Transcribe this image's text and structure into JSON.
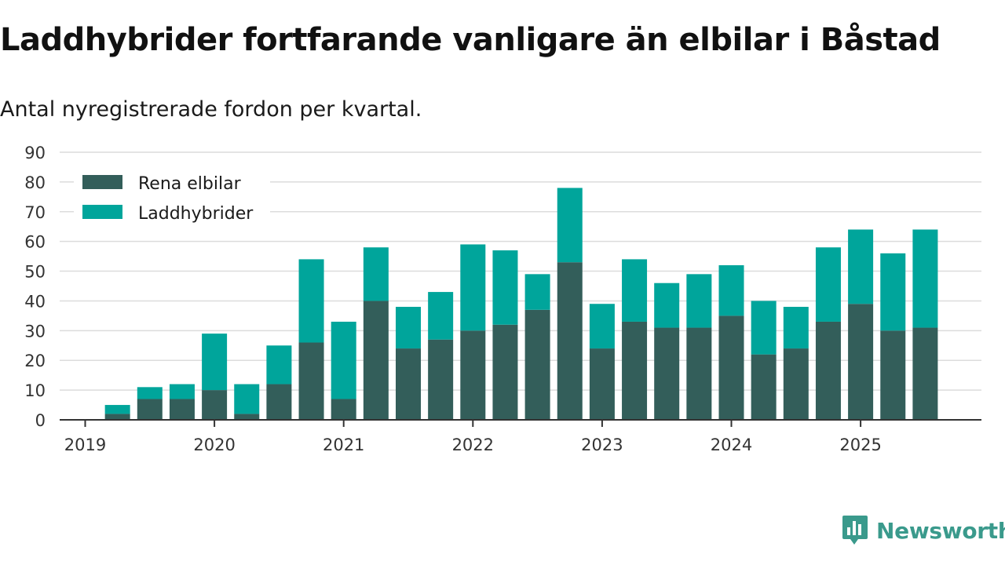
{
  "header": {
    "title": "Laddhybrider fortfarande vanligare än elbilar i Båstad",
    "subtitle": "Antal nyregistrerade fordon per kvartal."
  },
  "brand": {
    "name": "Newsworthy",
    "icon": "newsworthy-logo-icon",
    "color": "#3a9a8c"
  },
  "chart_data": {
    "type": "bar",
    "stacked": true,
    "title": "Laddhybrider fortfarande vanligare än elbilar i Båstad",
    "subtitle": "Antal nyregistrerade fordon per kvartal.",
    "xlabel": "",
    "ylabel": "",
    "ylim": [
      0,
      90
    ],
    "yticks": [
      0,
      10,
      20,
      30,
      40,
      50,
      60,
      70,
      80,
      90
    ],
    "grid": true,
    "legend_position": "top-left",
    "categories": [
      "2019 Q1",
      "2019 Q2",
      "2019 Q3",
      "2019 Q4",
      "2020 Q1",
      "2020 Q2",
      "2020 Q3",
      "2020 Q4",
      "2021 Q1",
      "2021 Q2",
      "2021 Q3",
      "2021 Q4",
      "2022 Q1",
      "2022 Q2",
      "2022 Q3",
      "2022 Q4",
      "2023 Q1",
      "2023 Q2",
      "2023 Q3",
      "2023 Q4",
      "2024 Q1",
      "2024 Q2",
      "2024 Q3",
      "2024 Q4",
      "2025 Q1",
      "2025 Q2",
      "2025 Q3"
    ],
    "x_tick_labels": [
      {
        "label": "2019",
        "category_index": 0
      },
      {
        "label": "2020",
        "category_index": 4
      },
      {
        "label": "2021",
        "category_index": 8
      },
      {
        "label": "2022",
        "category_index": 12
      },
      {
        "label": "2023",
        "category_index": 16
      },
      {
        "label": "2024",
        "category_index": 20
      },
      {
        "label": "2025",
        "category_index": 24
      }
    ],
    "series": [
      {
        "name": "Rena elbilar",
        "color": "#335e5a",
        "values": [
          0,
          2,
          7,
          7,
          10,
          2,
          12,
          26,
          7,
          40,
          24,
          27,
          30,
          32,
          37,
          53,
          24,
          33,
          31,
          31,
          35,
          22,
          24,
          33,
          39,
          30,
          31
        ]
      },
      {
        "name": "Laddhybrider",
        "color": "#00a59b",
        "values": [
          0,
          3,
          4,
          5,
          19,
          10,
          13,
          28,
          26,
          18,
          14,
          16,
          29,
          25,
          12,
          25,
          15,
          21,
          15,
          18,
          17,
          18,
          14,
          25,
          25,
          26,
          33
        ]
      }
    ]
  }
}
